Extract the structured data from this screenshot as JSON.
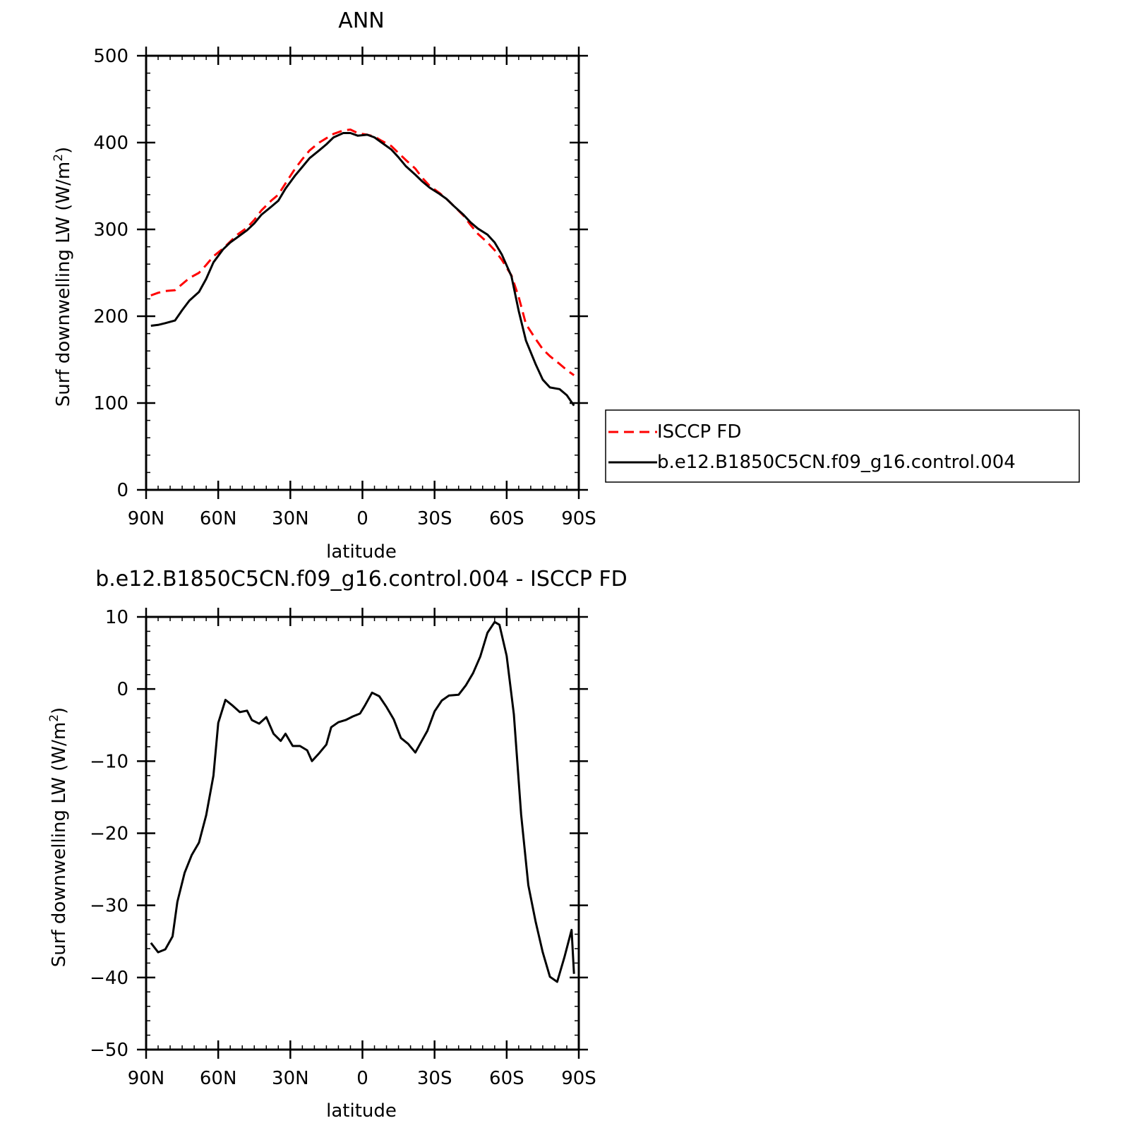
{
  "chart_data": [
    {
      "type": "line",
      "title": "ANN",
      "xlabel": "latitude",
      "ylabel": "Surf downwelling LW (W/m",
      "ylabel_sup": "2",
      "ylabel_close": ")",
      "xlim": [
        90,
        -90
      ],
      "ylim": [
        0,
        500
      ],
      "x_ticks": [
        90,
        60,
        30,
        0,
        -30,
        -60,
        -90
      ],
      "x_tick_labels": [
        "90N",
        "60N",
        "30N",
        "0",
        "30S",
        "60S",
        "90S"
      ],
      "y_ticks": [
        0,
        100,
        200,
        300,
        400,
        500
      ],
      "y_tick_labels": [
        "0",
        "100",
        "200",
        "300",
        "400",
        "500"
      ],
      "legend_position": "right",
      "series": [
        {
          "name": "ISCCP FD",
          "color": "#ff0000",
          "dash": "dashed",
          "x": [
            88,
            85,
            82,
            78,
            75,
            72,
            68,
            65,
            62,
            58,
            55,
            52,
            48,
            45,
            42,
            38,
            35,
            32,
            28,
            25,
            22,
            18,
            15,
            12,
            8,
            5,
            2,
            -2,
            -5,
            -8,
            -12,
            -15,
            -18,
            -22,
            -25,
            -28,
            -32,
            -35,
            -38,
            -42,
            -45,
            -48,
            -52,
            -55,
            -58,
            -62,
            -65,
            -68,
            -72,
            -75,
            -78,
            -82,
            -85,
            -88
          ],
          "y": [
            224,
            227,
            229,
            230,
            237,
            244,
            250,
            259,
            269,
            278,
            286,
            294,
            302,
            311,
            322,
            333,
            340,
            353,
            370,
            381,
            391,
            400,
            405,
            410,
            414,
            415,
            411,
            409,
            407,
            402,
            396,
            388,
            380,
            370,
            359,
            350,
            342,
            335,
            327,
            316,
            305,
            295,
            285,
            276,
            265,
            247,
            222,
            191,
            174,
            162,
            154,
            145,
            138,
            132
          ]
        },
        {
          "name": "b.e12.B1850C5CN.f09_g16.control.004",
          "color": "#000000",
          "dash": "solid",
          "x": [
            88,
            85,
            82,
            78,
            75,
            72,
            68,
            65,
            62,
            58,
            55,
            52,
            48,
            45,
            42,
            38,
            35,
            32,
            28,
            25,
            22,
            18,
            15,
            12,
            8,
            5,
            2,
            -2,
            -5,
            -8,
            -12,
            -15,
            -18,
            -22,
            -25,
            -28,
            -32,
            -35,
            -38,
            -42,
            -45,
            -48,
            -52,
            -55,
            -58,
            -62,
            -65,
            -68,
            -72,
            -75,
            -78,
            -82,
            -85,
            -88
          ],
          "y": [
            189,
            190,
            192,
            195,
            207,
            218,
            228,
            243,
            262,
            277,
            285,
            291,
            299,
            307,
            317,
            326,
            333,
            347,
            362,
            372,
            382,
            391,
            398,
            406,
            411,
            411,
            408,
            409,
            406,
            400,
            392,
            383,
            373,
            363,
            355,
            348,
            341,
            335,
            327,
            317,
            308,
            301,
            294,
            285,
            271,
            246,
            206,
            172,
            145,
            127,
            118,
            116,
            109,
            97
          ]
        }
      ]
    },
    {
      "type": "line",
      "title": "b.e12.B1850C5CN.f09_g16.control.004 - ISCCP FD",
      "xlabel": "latitude",
      "ylabel": "Surf downwelling LW (W/m",
      "ylabel_sup": "2",
      "ylabel_close": ")",
      "xlim": [
        90,
        -90
      ],
      "ylim": [
        -50,
        10
      ],
      "x_ticks": [
        90,
        60,
        30,
        0,
        -30,
        -60,
        -90
      ],
      "x_tick_labels": [
        "90N",
        "60N",
        "30N",
        "0",
        "30S",
        "60S",
        "90S"
      ],
      "y_ticks": [
        -50,
        -40,
        -30,
        -20,
        -10,
        0,
        10
      ],
      "y_tick_labels": [
        "−50",
        "−40",
        "−30",
        "−20",
        "−10",
        "0",
        "10"
      ],
      "series": [
        {
          "color": "#000000",
          "dash": "solid",
          "x": [
            88,
            85,
            82,
            79,
            77,
            74,
            71,
            68,
            65,
            62,
            60,
            57,
            54,
            51,
            48,
            46,
            43,
            40,
            37,
            34,
            32,
            29,
            26,
            23,
            21,
            18,
            15,
            13,
            10,
            7,
            4,
            1,
            -1,
            -4,
            -7,
            -10,
            -13,
            -16,
            -19,
            -22,
            -25,
            -27,
            -30,
            -33,
            -36,
            -40,
            -43,
            -46,
            -49,
            -52,
            -55,
            -57,
            -60,
            -63,
            -66,
            -69,
            -72,
            -75,
            -78,
            -81,
            -84,
            -87,
            -88
          ],
          "y": [
            -35.2,
            -36.5,
            -36.1,
            -34.3,
            -29.5,
            -25.5,
            -23.0,
            -21.3,
            -17.5,
            -12.0,
            -4.7,
            -1.5,
            -2.3,
            -3.2,
            -3.0,
            -4.3,
            -4.8,
            -3.9,
            -6.2,
            -7.2,
            -6.2,
            -7.9,
            -7.9,
            -8.5,
            -10.0,
            -8.9,
            -7.7,
            -5.3,
            -4.6,
            -4.3,
            -3.8,
            -3.4,
            -2.3,
            -0.5,
            -1.0,
            -2.5,
            -4.2,
            -6.8,
            -7.6,
            -8.8,
            -7.0,
            -5.8,
            -3.1,
            -1.6,
            -0.9,
            -0.8,
            0.5,
            2.2,
            4.5,
            7.8,
            9.3,
            8.9,
            4.6,
            -3.5,
            -17.4,
            -27.2,
            -32.2,
            -36.5,
            -39.9,
            -40.6,
            -37.2,
            -33.4,
            -39.5
          ]
        }
      ]
    }
  ]
}
